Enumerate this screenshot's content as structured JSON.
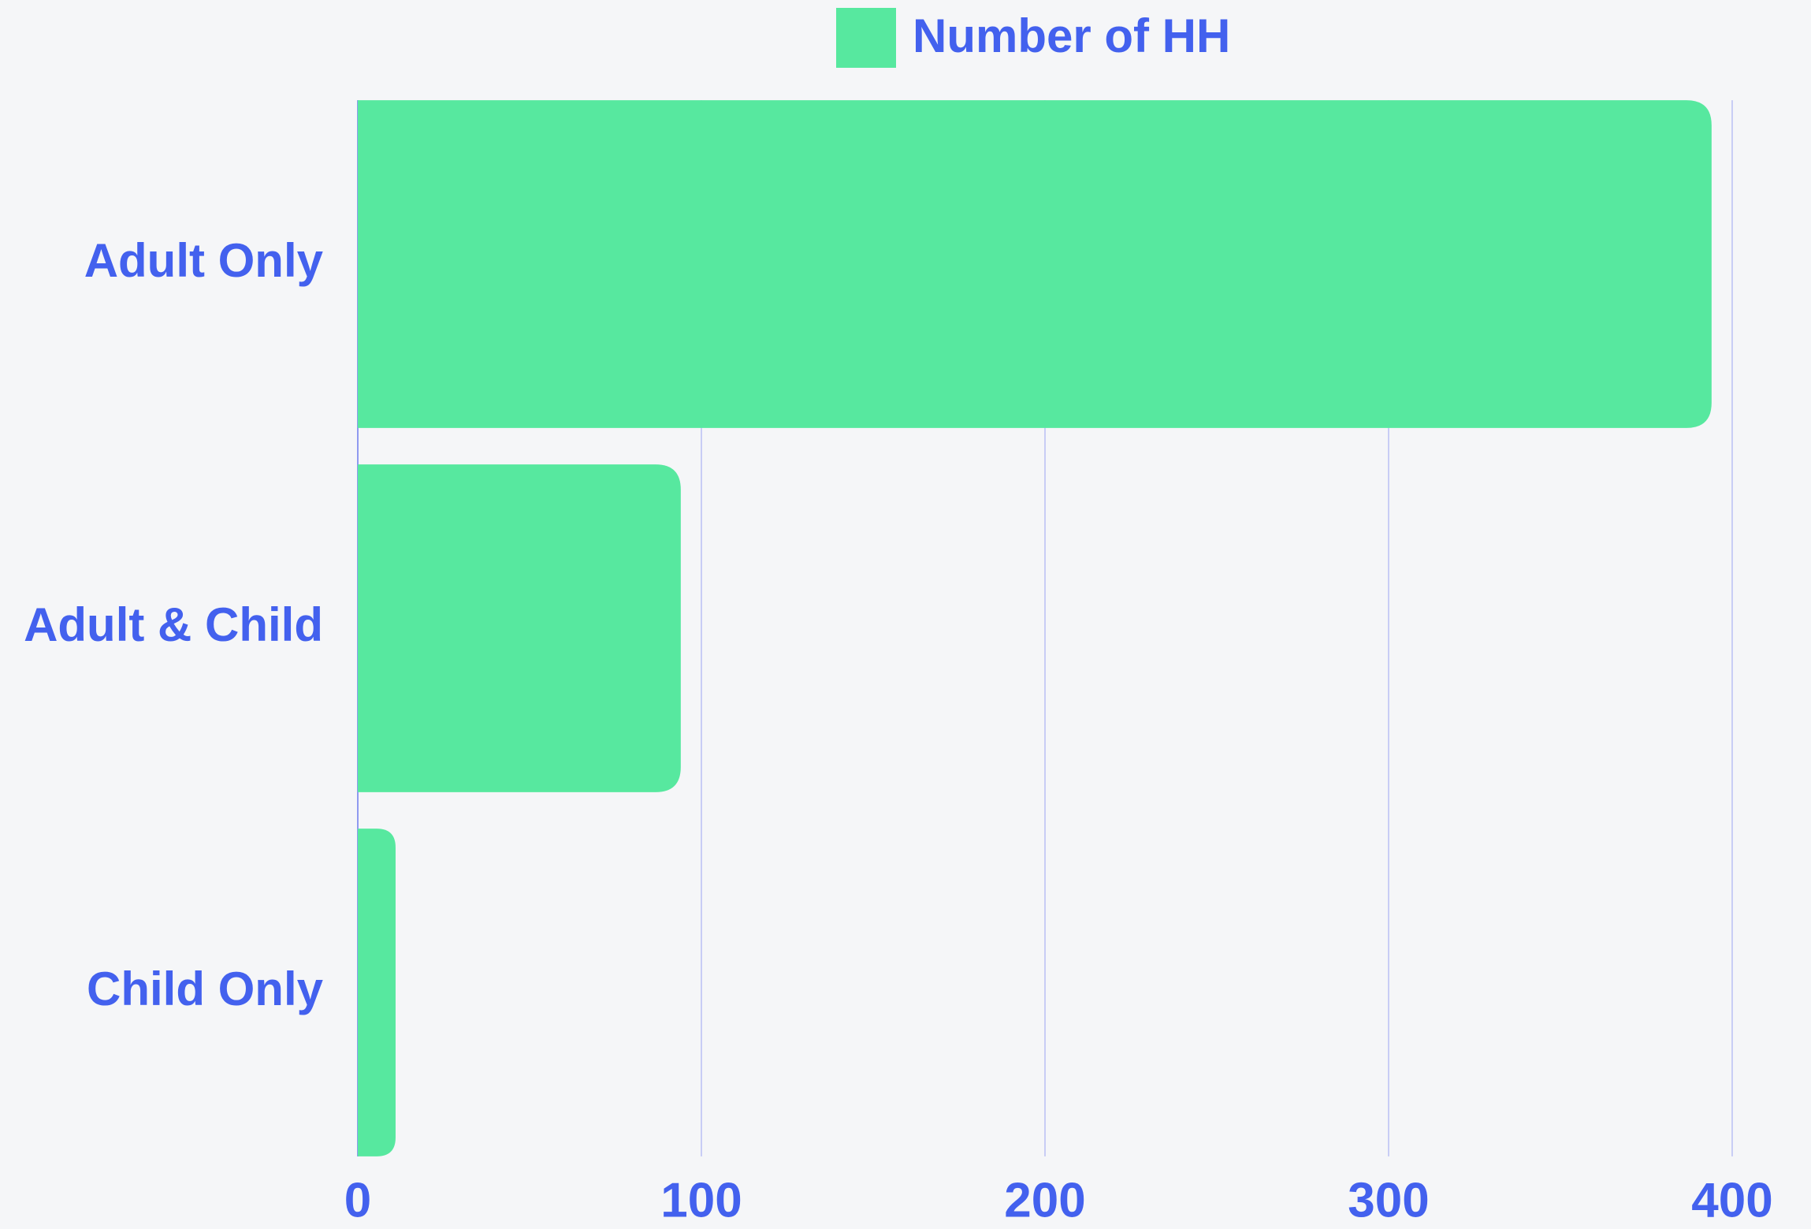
{
  "chart_data": {
    "type": "bar",
    "orientation": "horizontal",
    "categories": [
      "Adult Only",
      "Adult & Child",
      "Child Only"
    ],
    "series": [
      {
        "name": "Number of HH",
        "color": "#57e89f",
        "values": [
          394,
          94,
          11
        ]
      }
    ],
    "xlim": [
      0,
      400
    ],
    "xticks": [
      0,
      100,
      200,
      300,
      400
    ],
    "grid": true,
    "legend": "top"
  }
}
